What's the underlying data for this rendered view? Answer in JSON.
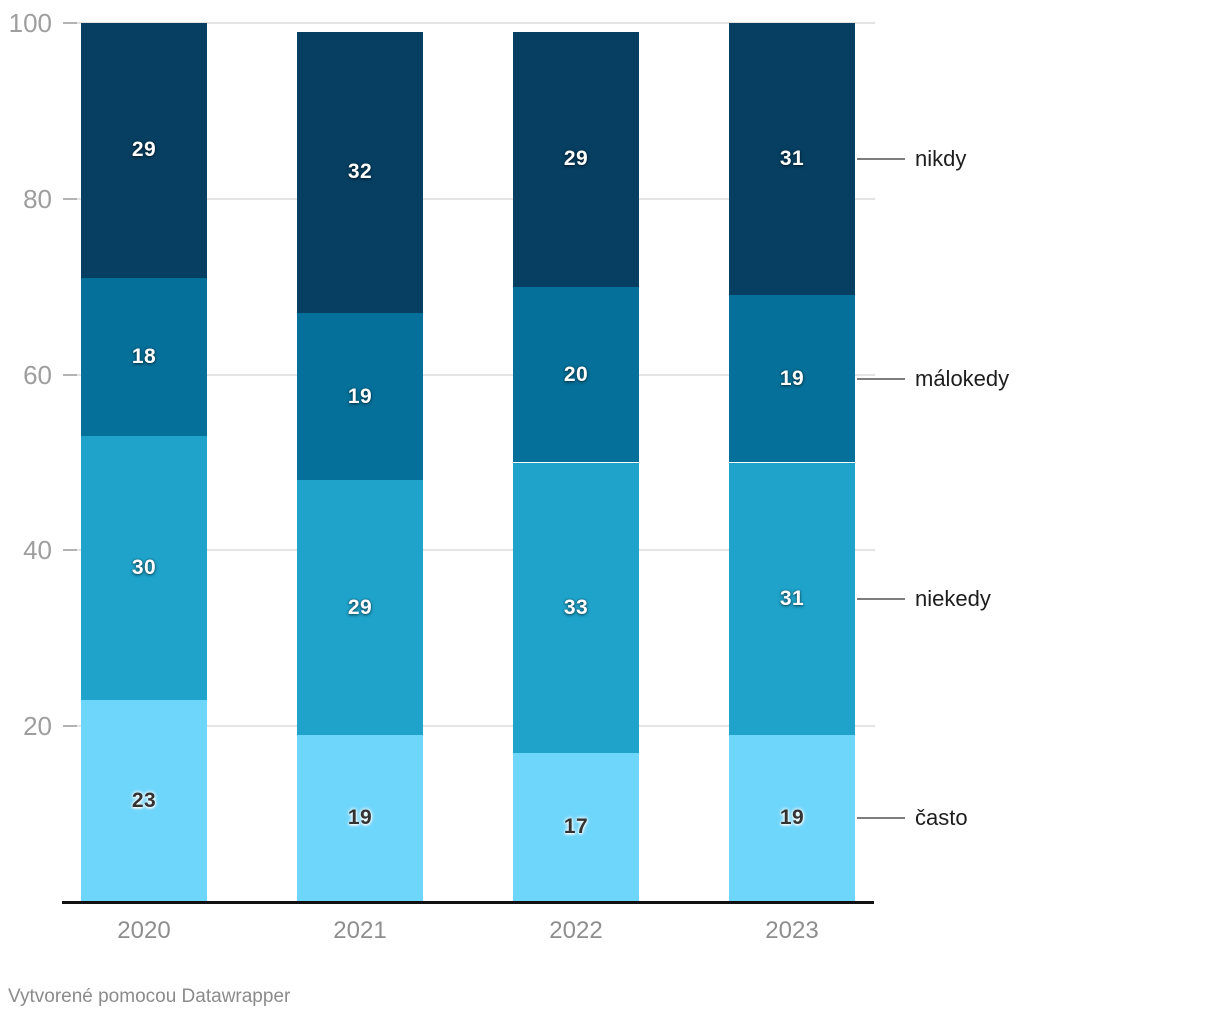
{
  "chart_data": {
    "type": "bar",
    "stacked": true,
    "categories": [
      "2020",
      "2021",
      "2022",
      "2023"
    ],
    "series": [
      {
        "name": "často",
        "color": "#6ed5fb",
        "label_style": "dark",
        "values": [
          23,
          19,
          17,
          19
        ]
      },
      {
        "name": "niekedy",
        "color": "#1fa3cb",
        "label_style": "light",
        "values": [
          30,
          29,
          33,
          31
        ]
      },
      {
        "name": "málokedy",
        "color": "#057099",
        "label_style": "light",
        "values": [
          18,
          19,
          20,
          19
        ]
      },
      {
        "name": "nikdy",
        "color": "#063f61",
        "label_style": "light",
        "values": [
          29,
          32,
          29,
          31
        ]
      }
    ],
    "y_ticks": [
      20,
      40,
      60,
      80,
      100
    ],
    "ylim": [
      0,
      100
    ],
    "grid": true,
    "legend_position": "right",
    "legend_labels_top_to_bottom": [
      "nikdy",
      "málokedy",
      "niekedy",
      "často"
    ],
    "title": "",
    "xlabel": "",
    "ylabel": ""
  },
  "colors": {
    "grid": "#e4e4e4",
    "tick": "#b3b3b3",
    "axis_text": "#9e9e9e",
    "x_axis_line": "#111111",
    "legend_text": "#1d1d1d",
    "footer_text": "#8b8b8b"
  },
  "footer": {
    "credit": "Vytvorené pomocou Datawrapper"
  }
}
